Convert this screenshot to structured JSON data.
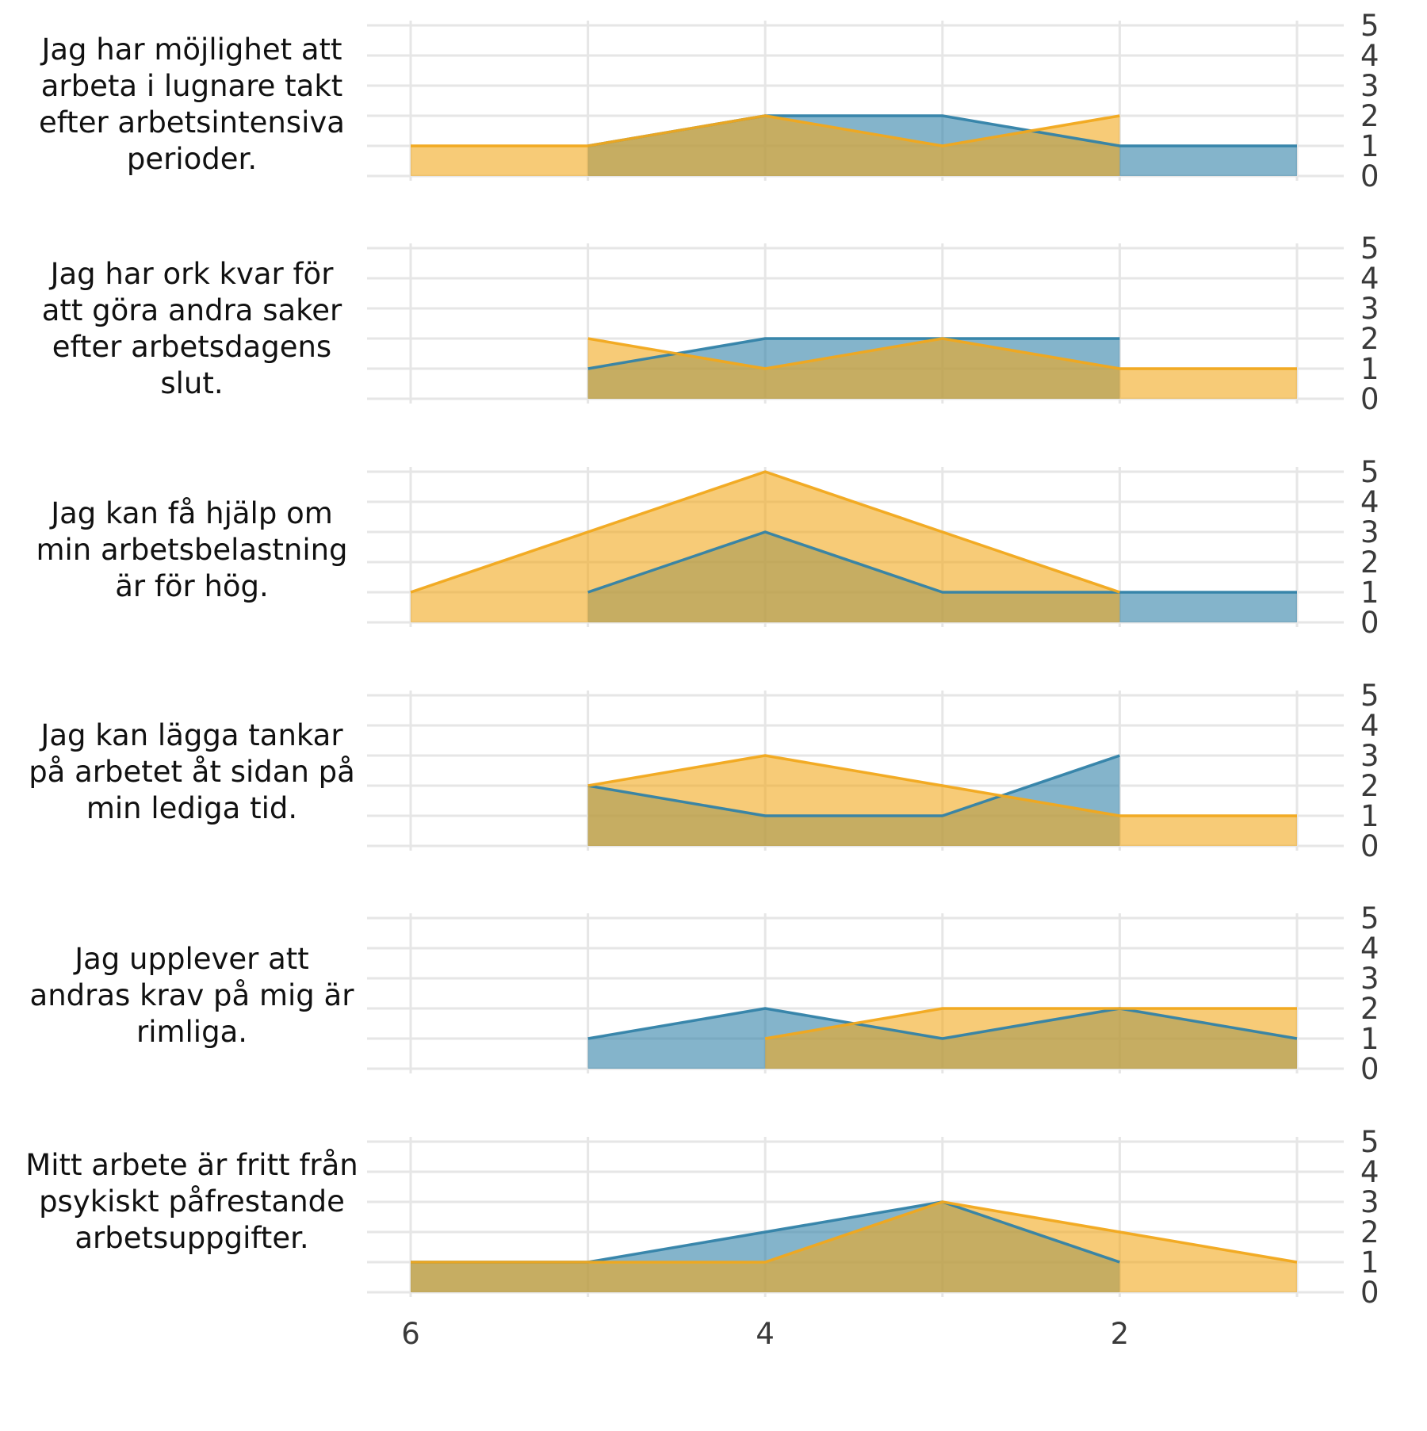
{
  "colors": {
    "series_a": "#3282a8",
    "series_b": "#f1a81c",
    "grid": "#e6e6e6"
  },
  "chart_data": {
    "type": "area",
    "x_axis": {
      "lim": [
        6.25,
        0.75
      ],
      "reversed": true,
      "ticks": [
        6,
        4,
        2
      ]
    },
    "y_axis": {
      "lim": [
        0,
        5
      ],
      "ticks": [
        0,
        1,
        2,
        3,
        4,
        5
      ],
      "position": "right"
    },
    "grid": true,
    "legend": "none",
    "panels": [
      {
        "label": "Jag har möjlighet att arbeta i lugnare takt efter arbetsintensiva perioder.",
        "series": [
          {
            "x": [
              5,
              4,
              3,
              2,
              1
            ],
            "y": [
              1,
              2,
              2,
              1,
              1
            ]
          },
          {
            "x": [
              6,
              5,
              4,
              3,
              2
            ],
            "y": [
              1,
              1,
              2,
              1,
              2
            ]
          }
        ]
      },
      {
        "label": "Jag har ork kvar för att göra andra saker efter arbetsdagens slut.",
        "series": [
          {
            "x": [
              5,
              4,
              3,
              2
            ],
            "y": [
              1,
              2,
              2,
              2
            ]
          },
          {
            "x": [
              5,
              4,
              3,
              2,
              1
            ],
            "y": [
              2,
              1,
              2,
              1,
              1
            ]
          }
        ]
      },
      {
        "label": "Jag kan få hjälp om min arbetsbelastning är för hög.",
        "series": [
          {
            "x": [
              5,
              4,
              3,
              2,
              1
            ],
            "y": [
              1,
              3,
              1,
              1,
              1
            ]
          },
          {
            "x": [
              6,
              5,
              4,
              3,
              2
            ],
            "y": [
              1,
              3,
              5,
              3,
              1
            ]
          }
        ]
      },
      {
        "label": "Jag kan lägga tankar på arbetet åt sidan på min lediga tid.",
        "series": [
          {
            "x": [
              5,
              4,
              3,
              2
            ],
            "y": [
              2,
              1,
              1,
              3
            ]
          },
          {
            "x": [
              5,
              4,
              3,
              2,
              1
            ],
            "y": [
              2,
              3,
              2,
              1,
              1
            ]
          }
        ]
      },
      {
        "label": "Jag upplever att andras krav på mig är rimliga.",
        "series": [
          {
            "x": [
              5,
              4,
              3,
              2,
              1
            ],
            "y": [
              1,
              2,
              1,
              2,
              1
            ]
          },
          {
            "x": [
              4,
              3,
              2,
              1
            ],
            "y": [
              1,
              2,
              2,
              2
            ]
          }
        ]
      },
      {
        "label": "Mitt arbete är fritt från psykiskt påfrestande arbetsuppgifter.",
        "series": [
          {
            "x": [
              6,
              5,
              4,
              3,
              2
            ],
            "y": [
              1,
              1,
              2,
              3,
              1
            ]
          },
          {
            "x": [
              6,
              5,
              4,
              3,
              2,
              1
            ],
            "y": [
              1,
              1,
              1,
              3,
              2,
              1
            ]
          }
        ]
      }
    ]
  }
}
